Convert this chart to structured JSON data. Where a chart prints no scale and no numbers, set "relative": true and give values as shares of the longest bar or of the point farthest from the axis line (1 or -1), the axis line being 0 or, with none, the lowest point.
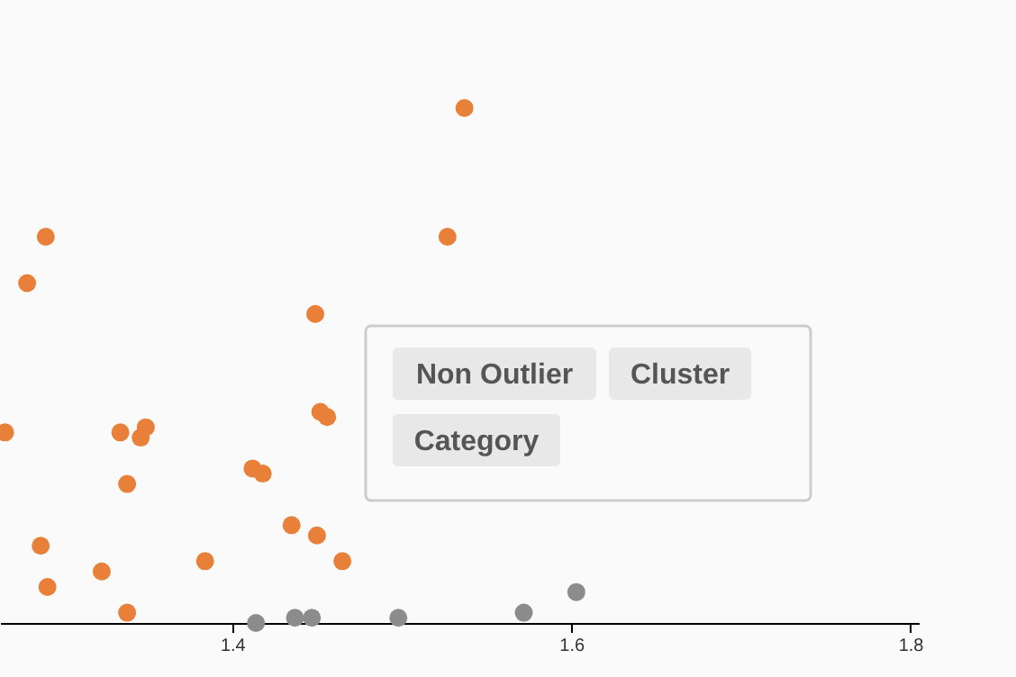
{
  "chart_data": {
    "type": "scatter",
    "relative": true,
    "xlim": [
      1.263,
      1.805
    ],
    "xticks": [
      1.4,
      1.6,
      1.8
    ],
    "grid": false,
    "legend": false,
    "marker": "circle",
    "series": [
      {
        "color": "#e8803a",
        "x": [
          1.537,
          1.29,
          1.279,
          1.527,
          1.449,
          1.266,
          1.334,
          1.346,
          1.349,
          1.452,
          1.456,
          1.338,
          1.412,
          1.418,
          1.287,
          1.435,
          1.45,
          1.291,
          1.323,
          1.384,
          1.465,
          1.338
        ],
        "values": [
          1.0,
          0.75,
          0.66,
          0.75,
          0.6,
          0.37,
          0.37,
          0.36,
          0.38,
          0.41,
          0.4,
          0.27,
          0.3,
          0.29,
          0.15,
          0.19,
          0.17,
          0.07,
          0.1,
          0.12,
          0.12,
          0.02
        ]
      },
      {
        "color": "#8c8c8c",
        "x": [
          1.414,
          1.437,
          1.447,
          1.498,
          1.572,
          1.603
        ],
        "values": [
          0.0,
          0.01,
          0.01,
          0.01,
          0.02,
          0.06
        ]
      }
    ],
    "annotations": [
      "Non Outlier",
      "Cluster",
      "Category"
    ]
  }
}
